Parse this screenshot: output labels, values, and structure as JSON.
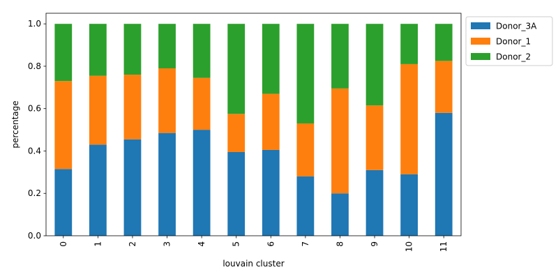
{
  "chart_data": {
    "type": "bar",
    "stacked": true,
    "categories": [
      "0",
      "1",
      "2",
      "3",
      "4",
      "5",
      "6",
      "7",
      "8",
      "9",
      "10",
      "11"
    ],
    "series": [
      {
        "name": "Donor_3A",
        "color": "#1f77b4",
        "values": [
          0.315,
          0.43,
          0.455,
          0.485,
          0.5,
          0.395,
          0.405,
          0.28,
          0.2,
          0.31,
          0.29,
          0.58
        ]
      },
      {
        "name": "Donor_1",
        "color": "#ff7f0e",
        "values": [
          0.415,
          0.325,
          0.305,
          0.305,
          0.245,
          0.18,
          0.265,
          0.25,
          0.495,
          0.305,
          0.52,
          0.245
        ]
      },
      {
        "name": "Donor_2",
        "color": "#2ca02c",
        "values": [
          0.27,
          0.245,
          0.24,
          0.21,
          0.255,
          0.425,
          0.33,
          0.47,
          0.305,
          0.385,
          0.19,
          0.175
        ]
      }
    ],
    "xlabel": "louvain cluster",
    "ylabel": "percentage",
    "ylim": [
      0.0,
      1.05
    ],
    "yticks": [
      "0.0",
      "0.2",
      "0.4",
      "0.6",
      "0.8",
      "1.0"
    ],
    "grid": false,
    "legend": "outside-top-right"
  }
}
